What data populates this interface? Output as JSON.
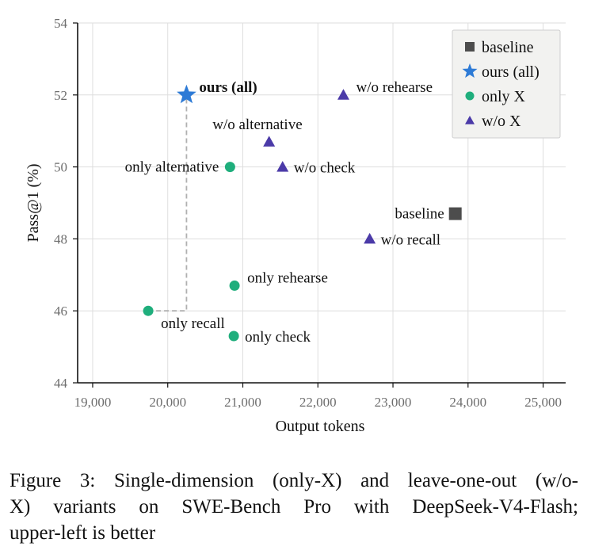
{
  "chart_data": {
    "type": "scatter",
    "xlabel": "Output tokens",
    "ylabel": "Pass@1 (%)",
    "xlim": [
      18800,
      25300
    ],
    "ylim": [
      44,
      54
    ],
    "xticks": [
      19000,
      20000,
      21000,
      22000,
      23000,
      24000,
      25000
    ],
    "xtick_labels": [
      "19,000",
      "20,000",
      "21,000",
      "22,000",
      "23,000",
      "24,000",
      "25,000"
    ],
    "yticks": [
      44,
      46,
      48,
      50,
      52,
      54
    ],
    "ytick_labels": [
      "44",
      "46",
      "48",
      "50",
      "52",
      "54"
    ],
    "grid": true,
    "legend_position": "top-right",
    "series": [
      {
        "name": "baseline",
        "marker": "square",
        "color": "#4d4d4d",
        "points": [
          {
            "x": 23830,
            "y": 48.7,
            "label": "baseline",
            "label_side": "left"
          }
        ]
      },
      {
        "name": "ours (all)",
        "marker": "star",
        "color": "#2e7bd6",
        "points": [
          {
            "x": 20250,
            "y": 52.0,
            "label": "ours (all)",
            "label_side": "right-above",
            "bold": true
          }
        ]
      },
      {
        "name": "only X",
        "marker": "circle",
        "color": "#1fae7c",
        "points": [
          {
            "x": 20830,
            "y": 50.0,
            "label": "only alternative",
            "label_side": "left"
          },
          {
            "x": 20890,
            "y": 46.7,
            "label": "only rehearse",
            "label_side": "right-above"
          },
          {
            "x": 19740,
            "y": 46.0,
            "label": "only recall",
            "label_side": "below-right"
          },
          {
            "x": 20880,
            "y": 45.3,
            "label": "only check",
            "label_side": "right"
          }
        ]
      },
      {
        "name": "w/o X",
        "marker": "triangle",
        "color": "#4b3aa8",
        "points": [
          {
            "x": 22340,
            "y": 52.0,
            "label": "w/o rehearse",
            "label_side": "right-above"
          },
          {
            "x": 21350,
            "y": 50.7,
            "label": "w/o alternative",
            "label_side": "above-left"
          },
          {
            "x": 21530,
            "y": 50.0,
            "label": "w/o check",
            "label_side": "right"
          },
          {
            "x": 22690,
            "y": 48.0,
            "label": "w/o recall",
            "label_side": "right"
          }
        ]
      }
    ],
    "annotations": [
      {
        "type": "dashed-connector",
        "color": "#b0b0b0",
        "path": [
          {
            "x": 19740,
            "y": 46.0
          },
          {
            "x": 20250,
            "y": 46.0
          },
          {
            "x": 20250,
            "y": 52.0
          }
        ]
      }
    ]
  },
  "caption": {
    "lines": [
      "Figure 3: Single-dimension (only-X) and leave-one-out (w/o-",
      "X) variants on SWE-Bench Pro with DeepSeek-V4-Flash;",
      "upper-left is better"
    ]
  }
}
